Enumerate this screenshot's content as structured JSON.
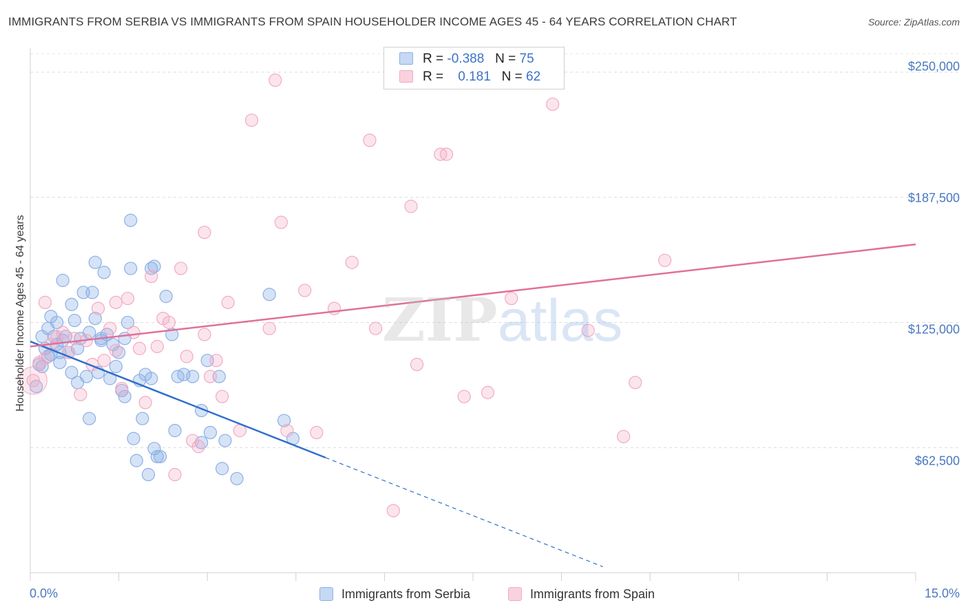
{
  "title": "IMMIGRANTS FROM SERBIA VS IMMIGRANTS FROM SPAIN HOUSEHOLDER INCOME AGES 45 - 64 YEARS CORRELATION CHART",
  "source": "Source: ZipAtlas.com",
  "watermark": {
    "zip": "ZIP",
    "atlas": "atlas"
  },
  "chart_data": {
    "type": "scatter",
    "xlabel": "",
    "ylabel": "Householder Income Ages 45 - 64 years",
    "xlim": [
      0,
      15
    ],
    "ylim": [
      0,
      262000
    ],
    "x_tick_labels": [
      "0.0%",
      "15.0%"
    ],
    "y_ticks": [
      62500,
      125000,
      187500,
      250000
    ],
    "y_tick_labels": [
      "$62,500",
      "$125,000",
      "$187,500",
      "$250,000"
    ],
    "grid": true,
    "legend": {
      "placement": "top-center",
      "rows": [
        {
          "r_label": "R =",
          "r_value": "-0.388",
          "n_label": "N =",
          "n_value": "75"
        },
        {
          "r_label": "R =",
          "r_value": "0.181",
          "n_label": "N =",
          "n_value": "62"
        }
      ]
    },
    "series": [
      {
        "name": "Immigrants from Serbia",
        "color": "#8ab0e6",
        "line_color": "#2f6fcc",
        "trend": {
          "x0": 0.0,
          "y0": 115500,
          "x1": 5.0,
          "y1": 57500,
          "dash_to_x": 9.7
        },
        "points": [
          [
            0.1,
            93000
          ],
          [
            0.15,
            104000
          ],
          [
            0.2,
            118000
          ],
          [
            0.25,
            112000
          ],
          [
            0.3,
            108000
          ],
          [
            0.3,
            122000
          ],
          [
            0.35,
            128000
          ],
          [
            0.4,
            118000
          ],
          [
            0.45,
            114000
          ],
          [
            0.5,
            105000
          ],
          [
            0.5,
            110000
          ],
          [
            0.55,
            146000
          ],
          [
            0.6,
            118000
          ],
          [
            0.65,
            110000
          ],
          [
            0.7,
            100000
          ],
          [
            0.7,
            134000
          ],
          [
            0.75,
            126000
          ],
          [
            0.8,
            112000
          ],
          [
            0.8,
            95000
          ],
          [
            0.85,
            117000
          ],
          [
            0.9,
            140000
          ],
          [
            0.95,
            98000
          ],
          [
            1.0,
            120000
          ],
          [
            1.0,
            77000
          ],
          [
            1.05,
            140000
          ],
          [
            1.1,
            127000
          ],
          [
            1.15,
            100000
          ],
          [
            1.2,
            117000
          ],
          [
            1.25,
            150000
          ],
          [
            1.3,
            119000
          ],
          [
            1.35,
            97000
          ],
          [
            1.4,
            114000
          ],
          [
            1.45,
            103000
          ],
          [
            1.5,
            110000
          ],
          [
            1.55,
            91000
          ],
          [
            1.6,
            88000
          ],
          [
            1.65,
            125000
          ],
          [
            1.7,
            152000
          ],
          [
            1.75,
            67000
          ],
          [
            1.8,
            56000
          ],
          [
            1.85,
            96000
          ],
          [
            1.9,
            77000
          ],
          [
            1.95,
            99000
          ],
          [
            2.0,
            49000
          ],
          [
            2.05,
            97000
          ],
          [
            2.1,
            62000
          ],
          [
            2.15,
            58000
          ],
          [
            2.2,
            58000
          ],
          [
            2.3,
            138000
          ],
          [
            2.4,
            119000
          ],
          [
            2.45,
            71000
          ],
          [
            2.5,
            98000
          ],
          [
            2.6,
            99000
          ],
          [
            2.75,
            98000
          ],
          [
            2.9,
            81000
          ],
          [
            3.0,
            106000
          ],
          [
            3.05,
            70000
          ],
          [
            3.2,
            98000
          ],
          [
            3.25,
            52000
          ],
          [
            3.3,
            66000
          ],
          [
            3.5,
            47000
          ],
          [
            0.2,
            103000
          ],
          [
            0.35,
            109000
          ],
          [
            0.45,
            125000
          ],
          [
            0.55,
            116000
          ],
          [
            1.2,
            116000
          ],
          [
            1.6,
            117000
          ],
          [
            2.05,
            152000
          ],
          [
            2.1,
            153000
          ],
          [
            1.7,
            176000
          ],
          [
            1.1,
            155000
          ],
          [
            2.9,
            65000
          ],
          [
            4.3,
            76000
          ],
          [
            4.05,
            139000
          ],
          [
            4.45,
            67000
          ]
        ]
      },
      {
        "name": "Immigrants from Spain",
        "color": "#f3a9c2",
        "line_color": "#e0709a",
        "trend": {
          "x0": 0.0,
          "y0": 113000,
          "x1": 15.0,
          "y1": 164000
        },
        "points": [
          [
            0.05,
            96000
          ],
          [
            0.15,
            105000
          ],
          [
            0.25,
            107000
          ],
          [
            0.35,
            114000
          ],
          [
            0.45,
            118000
          ],
          [
            0.55,
            120000
          ],
          [
            0.65,
            110000
          ],
          [
            0.75,
            117000
          ],
          [
            0.85,
            89000
          ],
          [
            0.95,
            116000
          ],
          [
            1.05,
            104000
          ],
          [
            1.15,
            132000
          ],
          [
            1.25,
            106000
          ],
          [
            1.35,
            122000
          ],
          [
            1.45,
            111000
          ],
          [
            1.55,
            92000
          ],
          [
            1.65,
            137000
          ],
          [
            1.75,
            120000
          ],
          [
            1.85,
            112000
          ],
          [
            1.95,
            85000
          ],
          [
            2.05,
            148000
          ],
          [
            2.15,
            113000
          ],
          [
            2.25,
            127000
          ],
          [
            2.35,
            125000
          ],
          [
            2.45,
            49000
          ],
          [
            2.55,
            152000
          ],
          [
            2.65,
            108000
          ],
          [
            2.75,
            66000
          ],
          [
            2.85,
            63000
          ],
          [
            2.95,
            119000
          ],
          [
            3.05,
            98000
          ],
          [
            3.15,
            106000
          ],
          [
            3.25,
            88000
          ],
          [
            3.35,
            135000
          ],
          [
            3.55,
            71000
          ],
          [
            3.75,
            226000
          ],
          [
            4.05,
            122000
          ],
          [
            4.15,
            246000
          ],
          [
            4.25,
            175000
          ],
          [
            4.35,
            71000
          ],
          [
            4.65,
            141000
          ],
          [
            4.85,
            70000
          ],
          [
            5.15,
            132000
          ],
          [
            5.45,
            155000
          ],
          [
            5.75,
            216000
          ],
          [
            5.85,
            122000
          ],
          [
            6.15,
            31000
          ],
          [
            6.45,
            183000
          ],
          [
            6.55,
            104000
          ],
          [
            6.95,
            209000
          ],
          [
            7.05,
            209000
          ],
          [
            7.35,
            88000
          ],
          [
            7.75,
            90000
          ],
          [
            8.15,
            137000
          ],
          [
            8.85,
            234000
          ],
          [
            9.45,
            121000
          ],
          [
            10.05,
            68000
          ],
          [
            10.25,
            95000
          ],
          [
            10.75,
            156000
          ],
          [
            2.95,
            170000
          ],
          [
            1.45,
            135000
          ],
          [
            0.25,
            135000
          ]
        ]
      }
    ]
  }
}
